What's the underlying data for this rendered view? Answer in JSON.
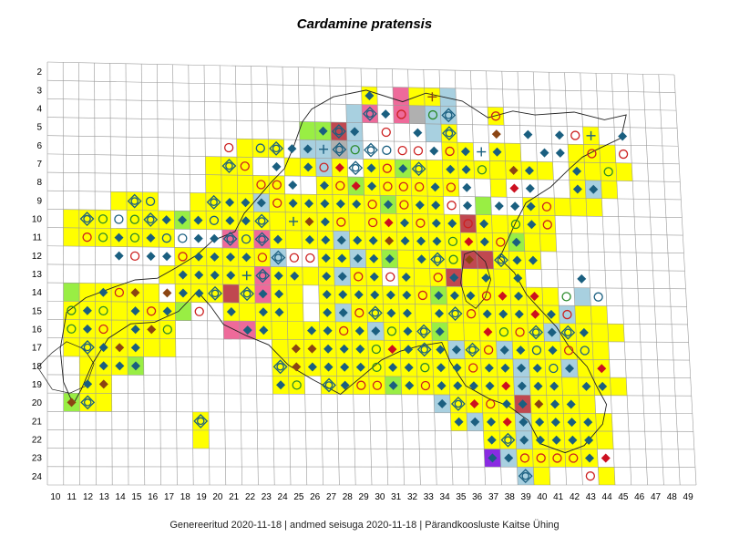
{
  "title": "Cardamine pratensis",
  "footer": "Genereeritud 2020-11-18  |  andmed seisuga 2020-11-18  |  Pärandkoosluste Kaitse Ühing",
  "x_axis_labels": [
    "10",
    "11",
    "12",
    "13",
    "14",
    "15",
    "16",
    "17",
    "18",
    "19",
    "20",
    "21",
    "22",
    "23",
    "24",
    "25",
    "26",
    "27",
    "28",
    "29",
    "30",
    "31",
    "32",
    "33",
    "34",
    "35",
    "36",
    "37",
    "38",
    "39",
    "40",
    "41",
    "42",
    "43",
    "44",
    "45",
    "46",
    "47",
    "48",
    "49"
  ],
  "y_axis_labels": [
    "2",
    "3",
    "4",
    "5",
    "6",
    "7",
    "8",
    "9",
    "10",
    "11",
    "12",
    "13",
    "14",
    "15",
    "16",
    "17",
    "18",
    "19",
    "20",
    "21",
    "22",
    "23",
    "24"
  ],
  "colors": {
    "yellow": "#ffff00",
    "green": "#99ee44",
    "lightblue": "#a8d0e0",
    "pink": "#ee6a9a",
    "darkred": "#c04850",
    "purple": "#8a2be2",
    "gray": "#b0b0b0",
    "diamond_blue": "#1a5f80",
    "diamond_brown": "#8b4513",
    "diamond_red": "#cc1020",
    "circle_red": "#cc2020",
    "circle_green": "#2a8a2a",
    "circle_blue": "#1a5f80",
    "plus_blue": "#1a6fa0",
    "plus_red": "#cc2020",
    "grid": "#999999",
    "border": "#222222"
  },
  "legend_symbols": [
    "diamond-blue",
    "diamond-brown",
    "diamond-red",
    "circle-red",
    "circle-green",
    "circle-blue",
    "target-blue",
    "plus-blue",
    "plus-red"
  ]
}
